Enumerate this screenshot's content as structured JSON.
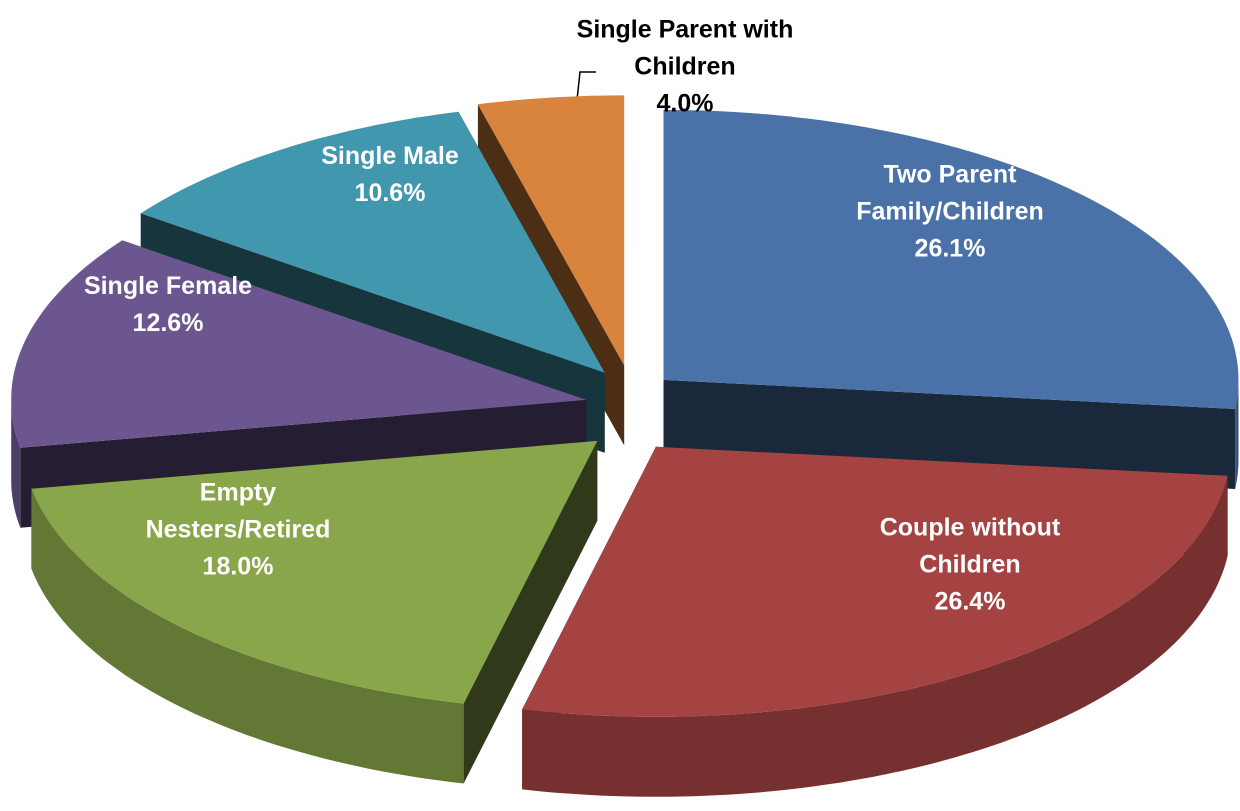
{
  "chart_data": {
    "type": "pie3d",
    "categories": [
      "Two Parent Family/Children",
      "Couple without Children",
      "Empty Nesters/Retired",
      "Single Female",
      "Single Male",
      "Single Parent with Children"
    ],
    "values": [
      26.1,
      26.4,
      18.0,
      12.6,
      10.6,
      4.0
    ],
    "value_labels": [
      "26.1%",
      "26.4%",
      "18.0%",
      "12.6%",
      "10.6%",
      "4.0%"
    ],
    "colors": [
      "#4a72a8",
      "#a54343",
      "#8aa64a",
      "#6b5690",
      "#4097ae",
      "#d9843c"
    ]
  }
}
